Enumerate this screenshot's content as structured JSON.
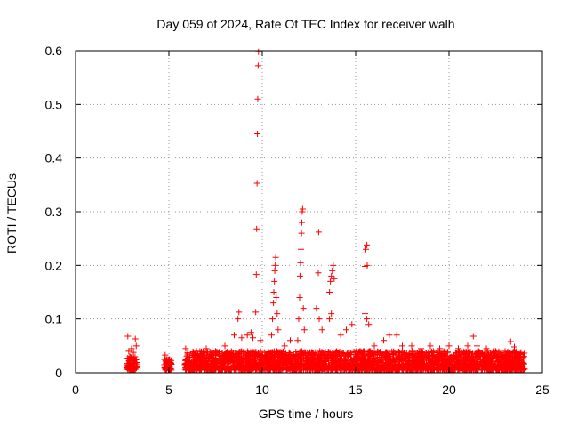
{
  "chart_data": {
    "type": "scatter",
    "title": "Day 059 of 2024, Rate Of TEC Index for receiver walh",
    "xlabel": "GPS time / hours",
    "ylabel": "ROTI / TECUs",
    "xlim": [
      0,
      25
    ],
    "ylim": [
      0,
      0.6
    ],
    "xticks": [
      "0",
      "5",
      "10",
      "15",
      "20",
      "25"
    ],
    "yticks": [
      "0",
      "0.1",
      "0.2",
      "0.3",
      "0.4",
      "0.5",
      "0.6"
    ],
    "grid": true,
    "marker": "+",
    "series": [
      {
        "color": "#ff0000",
        "points": [
          [
            2.8,
            0.068
          ],
          [
            2.85,
            0.04
          ],
          [
            2.9,
            0.03
          ],
          [
            3.0,
            0.045
          ],
          [
            3.1,
            0.038
          ],
          [
            3.2,
            0.063
          ],
          [
            3.25,
            0.05
          ],
          [
            4.8,
            0.033
          ],
          [
            4.9,
            0.025
          ],
          [
            5.0,
            0.02
          ],
          [
            5.1,
            0.018
          ],
          [
            5.9,
            0.045
          ],
          [
            6.5,
            0.03
          ],
          [
            7.0,
            0.045
          ],
          [
            7.5,
            0.04
          ],
          [
            8.0,
            0.05
          ],
          [
            8.5,
            0.07
          ],
          [
            8.7,
            0.1
          ],
          [
            8.75,
            0.113
          ],
          [
            8.9,
            0.065
          ],
          [
            9.2,
            0.07
          ],
          [
            9.4,
            0.075
          ],
          [
            9.5,
            0.065
          ],
          [
            9.65,
            0.113
          ],
          [
            9.68,
            0.183
          ],
          [
            9.7,
            0.268
          ],
          [
            9.72,
            0.353
          ],
          [
            9.74,
            0.445
          ],
          [
            9.76,
            0.51
          ],
          [
            9.78,
            0.572
          ],
          [
            9.8,
            0.598
          ],
          [
            9.9,
            0.06
          ],
          [
            10.5,
            0.07
          ],
          [
            10.55,
            0.1
          ],
          [
            10.6,
            0.13
          ],
          [
            10.62,
            0.15
          ],
          [
            10.65,
            0.17
          ],
          [
            10.67,
            0.19
          ],
          [
            10.7,
            0.2
          ],
          [
            10.72,
            0.215
          ],
          [
            10.75,
            0.14
          ],
          [
            10.8,
            0.11
          ],
          [
            10.85,
            0.08
          ],
          [
            11.2,
            0.05
          ],
          [
            11.5,
            0.06
          ],
          [
            11.9,
            0.06
          ],
          [
            11.95,
            0.1
          ],
          [
            12.0,
            0.14
          ],
          [
            12.02,
            0.18
          ],
          [
            12.05,
            0.205
          ],
          [
            12.07,
            0.23
          ],
          [
            12.1,
            0.26
          ],
          [
            12.12,
            0.28
          ],
          [
            12.14,
            0.3
          ],
          [
            12.16,
            0.305
          ],
          [
            12.2,
            0.12
          ],
          [
            12.25,
            0.08
          ],
          [
            12.9,
            0.12
          ],
          [
            13.0,
            0.186
          ],
          [
            13.02,
            0.262
          ],
          [
            13.05,
            0.1
          ],
          [
            13.2,
            0.08
          ],
          [
            13.6,
            0.15
          ],
          [
            13.65,
            0.17
          ],
          [
            13.7,
            0.18
          ],
          [
            13.75,
            0.19
          ],
          [
            13.8,
            0.2
          ],
          [
            13.85,
            0.175
          ],
          [
            13.7,
            0.11
          ],
          [
            13.6,
            0.1
          ],
          [
            14.2,
            0.07
          ],
          [
            14.5,
            0.08
          ],
          [
            14.8,
            0.09
          ],
          [
            15.5,
            0.198
          ],
          [
            15.55,
            0.23
          ],
          [
            15.6,
            0.238
          ],
          [
            15.62,
            0.2
          ],
          [
            15.5,
            0.11
          ],
          [
            15.6,
            0.1
          ],
          [
            15.7,
            0.09
          ],
          [
            16.0,
            0.05
          ],
          [
            16.5,
            0.06
          ],
          [
            16.8,
            0.07
          ],
          [
            17.2,
            0.07
          ],
          [
            17.5,
            0.05
          ],
          [
            18.0,
            0.05
          ],
          [
            18.5,
            0.045
          ],
          [
            19.0,
            0.05
          ],
          [
            19.5,
            0.045
          ],
          [
            20.0,
            0.05
          ],
          [
            20.5,
            0.045
          ],
          [
            21.0,
            0.05
          ],
          [
            21.3,
            0.068
          ],
          [
            21.5,
            0.05
          ],
          [
            22.0,
            0.045
          ],
          [
            22.5,
            0.04
          ],
          [
            23.0,
            0.04
          ],
          [
            23.3,
            0.058
          ],
          [
            23.5,
            0.048
          ],
          [
            23.8,
            0.035
          ],
          [
            24.0,
            0.03
          ]
        ],
        "density_band": {
          "comment": "dense low-level cloud of points",
          "segments": [
            {
              "x": [
                2.75,
                3.3
              ],
              "y": [
                0.005,
                0.03
              ]
            },
            {
              "x": [
                4.75,
                5.15
              ],
              "y": [
                0.005,
                0.025
              ]
            },
            {
              "x": [
                5.85,
                24.05
              ],
              "y": [
                0.005,
                0.04
              ]
            }
          ]
        }
      }
    ]
  }
}
